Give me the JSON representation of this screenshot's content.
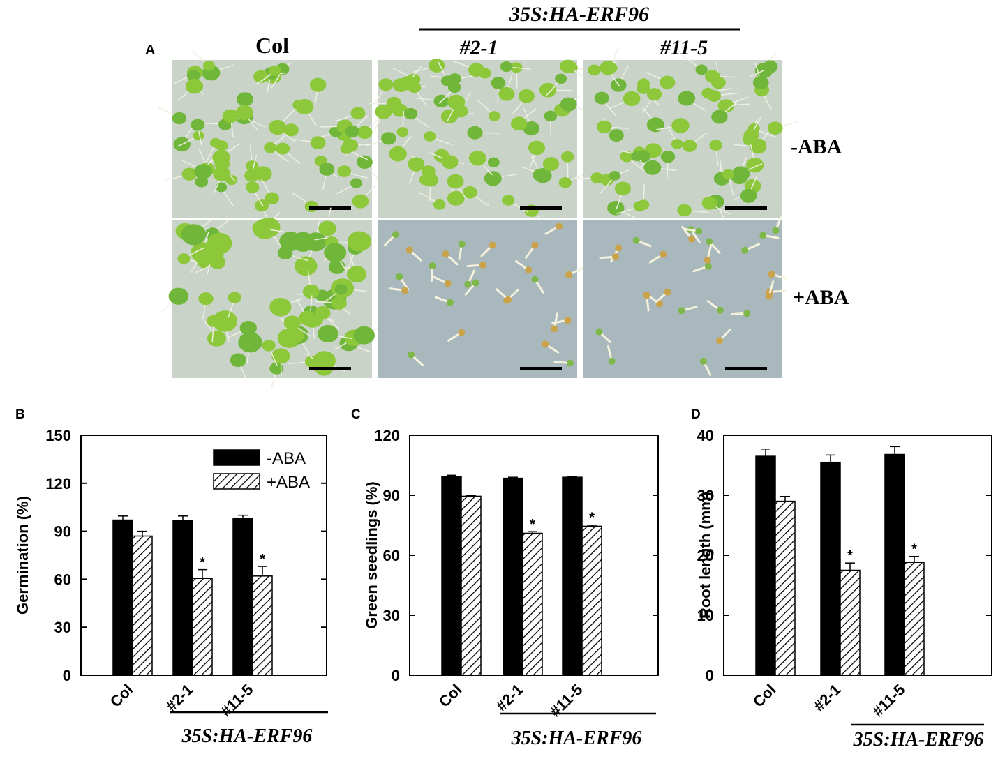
{
  "panel_a": {
    "letter": "A",
    "transgene": "35S:HA-ERF96",
    "columns": [
      "Col",
      "#2-1",
      "#11-5"
    ],
    "rows": [
      "-ABA",
      "+ABA"
    ]
  },
  "colors": {
    "minus_aba": "#000000",
    "plus_aba_hatch": "#000000",
    "plus_aba_fill": "#ffffff",
    "seedling_green": "#8cc83a",
    "plate_bg": "#c9d3c8",
    "plate_bg_aba": "#a9b8bd"
  },
  "chart_data": [
    {
      "panel": "B",
      "type": "bar",
      "categories": [
        "Col",
        "#2-1",
        "#11-5"
      ],
      "group_label": "35S:HA-ERF96",
      "ylabel": "Germination  (%)",
      "ylim": [
        0,
        150
      ],
      "yticks": [
        0,
        30,
        60,
        90,
        120,
        150
      ],
      "legend": {
        "position": "top-right",
        "entries": [
          "-ABA",
          "+ABA"
        ]
      },
      "series": [
        {
          "name": "-ABA",
          "values": [
            97,
            96.5,
            98
          ],
          "errors": [
            2.5,
            3,
            2
          ],
          "sig": [
            false,
            false,
            false
          ]
        },
        {
          "name": "+ABA",
          "values": [
            87,
            60.5,
            62
          ],
          "errors": [
            3,
            5.5,
            6
          ],
          "sig": [
            false,
            true,
            true
          ]
        }
      ]
    },
    {
      "panel": "C",
      "type": "bar",
      "categories": [
        "Col",
        "#2-1",
        "#11-5"
      ],
      "group_label": "35S:HA-ERF96",
      "ylabel": "Green seedlings (%)",
      "ylim": [
        0,
        120
      ],
      "yticks": [
        0,
        30,
        60,
        90,
        120
      ],
      "series": [
        {
          "name": "-ABA",
          "values": [
            99.5,
            98.5,
            99
          ],
          "errors": [
            0.5,
            0.5,
            0.5
          ],
          "sig": [
            false,
            false,
            false
          ]
        },
        {
          "name": "+ABA",
          "values": [
            89.5,
            71,
            74.5
          ],
          "errors": [
            0.3,
            0.8,
            0.6
          ],
          "sig": [
            false,
            true,
            true
          ]
        }
      ]
    },
    {
      "panel": "D",
      "type": "bar",
      "categories": [
        "Col",
        "#2-1",
        "#11-5"
      ],
      "group_label": "35S:HA-ERF96",
      "ylabel": "Root length  (mm)",
      "ylim": [
        0,
        40
      ],
      "yticks": [
        0,
        10,
        20,
        30,
        40
      ],
      "series": [
        {
          "name": "-ABA",
          "values": [
            36.5,
            35.5,
            36.8
          ],
          "errors": [
            1.2,
            1.2,
            1.3
          ],
          "sig": [
            false,
            false,
            false
          ]
        },
        {
          "name": "+ABA",
          "values": [
            29,
            17.5,
            18.8
          ],
          "errors": [
            0.8,
            1.2,
            1.0
          ],
          "sig": [
            false,
            true,
            true
          ]
        }
      ]
    }
  ]
}
